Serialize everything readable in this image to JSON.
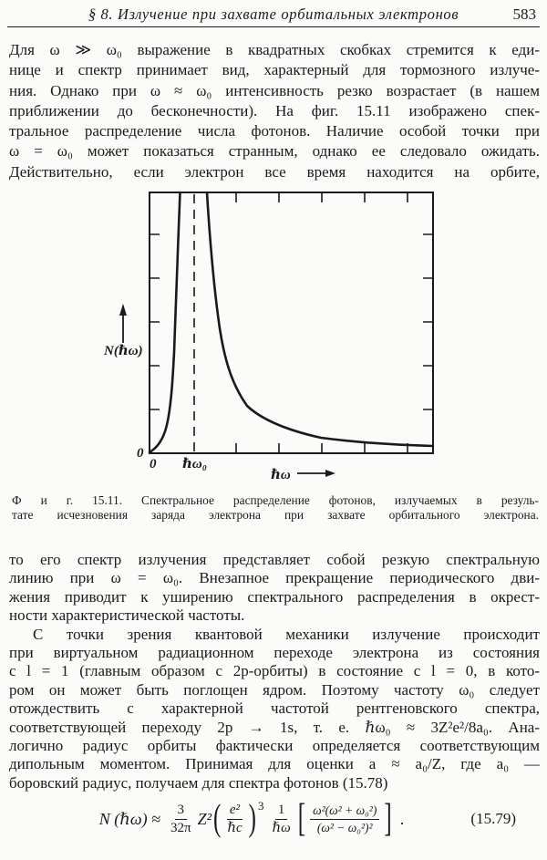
{
  "header": {
    "title": "§ 8. Излучение при захвате орбитальных электронов",
    "page_number": "583"
  },
  "paragraphs": {
    "p1": {
      "lines": [
        "Для ω ≫ ω₀ выражение в квадратных скобках стремится к еди-",
        "нице и спектр принимает вид, характерный для тормозного излуче-",
        "ния. Однако при ω ≈ ω₀ интенсивность резко возрастает (в нашем",
        "приближении до бесконечности). На фиг. 15.11 изображено спек-",
        "тральное распределение числа фотонов. Наличие особой точки при",
        "ω = ω₀ может показаться странным, однако ее следовало ожидать.",
        "Действительно, если электрон все время находится на орбите,"
      ]
    },
    "p2": {
      "lines": [
        "то его спектр излучения представляет собой резкую спектральную",
        "линию при ω = ω₀. Внезапное прекращение периодического дви-",
        "жения приводит к уширению спектрального распределения в окрест-",
        "ности характеристической частоты."
      ]
    },
    "p3": {
      "lines": [
        "С точки зрения квантовой механики излучение происходит",
        "при виртуальном радиационном переходе электрона из состояния",
        "с l = 1 (главным образом с 2p-орбиты) в состояние с l = 0, в кото-",
        "ром он может быть поглощен ядром. Поэтому частоту ω₀ следует",
        "отождествить с характерной частотой рентгеновского спектра,",
        "соответствующей переходу 2p → 1s, т. е. ℏω₀ ≈ 3Z²e²/8a₀. Ана-",
        "логично радиус орбиты фактически определяется соответствующим",
        "дипольным моментом. Принимая для оценки a ≈ a₀/Z, где a₀ —",
        "боровский радиус, получаем для спектра фотонов (15.78)"
      ]
    }
  },
  "figure": {
    "y_axis_label": "N(ℏω)",
    "x_axis_label": "ℏω",
    "y_origin_label": "0",
    "x_origin_label": "0",
    "x0_tick_label": "ℏω₀"
  },
  "caption": {
    "lines": [
      "Ф и г.  15.11.  Спектральное распределение фотонов, излучаемых в резуль-",
      "тате исчезновения заряда электрона при захвате орбитального электрона."
    ]
  },
  "equation": {
    "lhs": "N (ℏω) ≈",
    "frac1_num": "3",
    "frac1_den": "32π",
    "z_term": "Z²",
    "paren_open": "(",
    "frac2_num": "e²",
    "frac2_den": "ℏc",
    "paren_close": ")",
    "paren_exponent": "3",
    "frac3_num": "1",
    "frac3_den": "ℏω",
    "bracket_open": "[",
    "frac4_num": "ω²(ω² + ω₀²)",
    "frac4_den": "(ω² − ω₀²)²",
    "bracket_close": "]",
    "period": ".",
    "number": "(15.79)"
  },
  "colors": {
    "ink": "#1a1a1a",
    "paper": "#fbfbf9"
  }
}
